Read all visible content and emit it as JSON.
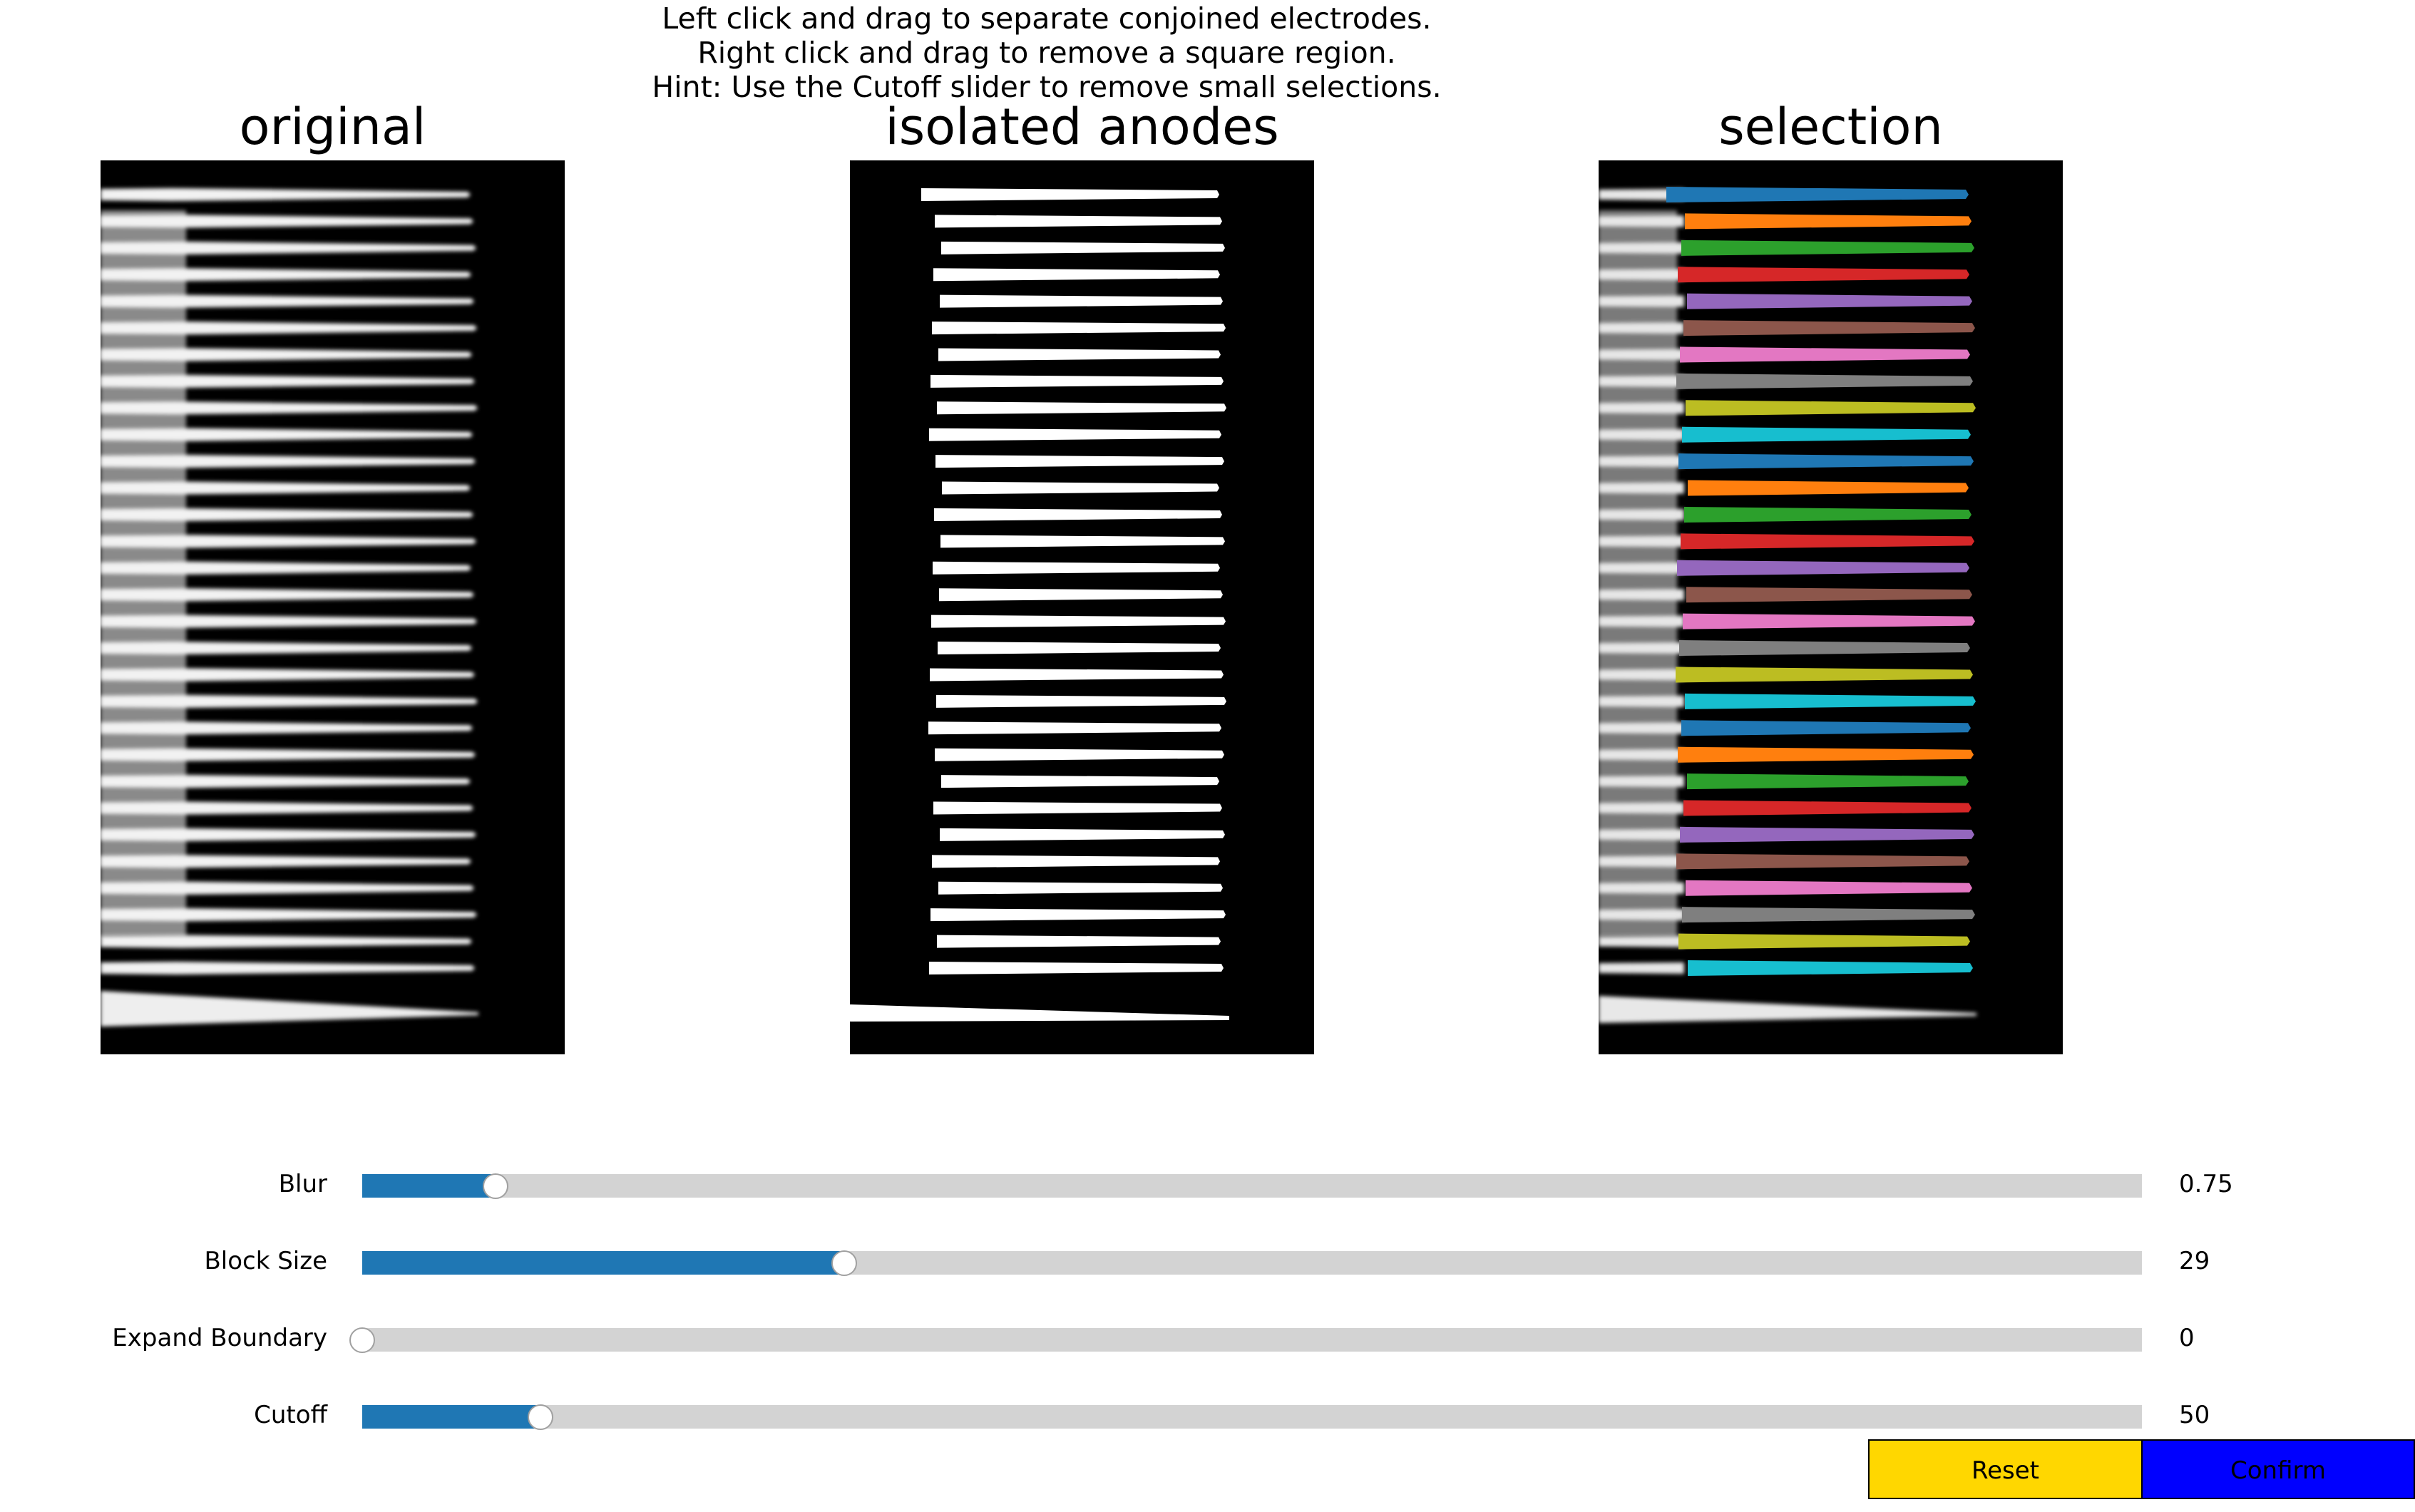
{
  "instructions": [
    "Left click and drag to separate conjoined electrodes.",
    "Right click and drag to remove a square region.",
    "Hint: Use the Cutoff slider to remove small selections."
  ],
  "panels": {
    "original": {
      "title": "original"
    },
    "isolated": {
      "title": "isolated anodes"
    },
    "selection": {
      "title": "selection"
    }
  },
  "sliders": {
    "blur": {
      "label": "Blur",
      "value_text": "0.75",
      "fraction": 0.075
    },
    "block_size": {
      "label": "Block Size",
      "value_text": "29",
      "fraction": 0.271
    },
    "expand_boundary": {
      "label": "Expand Boundary",
      "value_text": "0",
      "fraction": 0.0
    },
    "cutoff": {
      "label": "Cutoff",
      "value_text": "50",
      "fraction": 0.1
    }
  },
  "buttons": {
    "reset": {
      "label": "Reset",
      "color": "#ffd700"
    },
    "confirm": {
      "label": "Confirm",
      "color": "#0000ff"
    }
  },
  "selection_palette": [
    "#1f77b4",
    "#ff7f0e",
    "#2ca02c",
    "#d62728",
    "#9467bd",
    "#8c564b",
    "#e377c2",
    "#7f7f7f",
    "#bcbd22",
    "#17becf"
  ],
  "electrode_count": 30
}
